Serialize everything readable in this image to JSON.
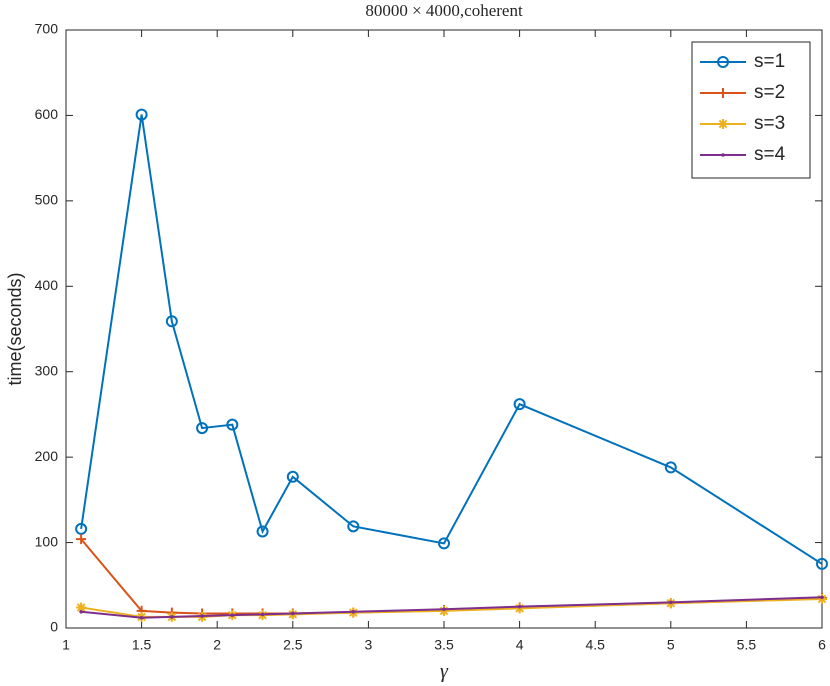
{
  "chart_data": {
    "type": "line",
    "title": "80000 × 4000,coherent",
    "x_label": "γ",
    "y_label": "time(seconds)",
    "x": [
      1.1,
      1.5,
      1.7,
      1.9,
      2.1,
      2.3,
      2.5,
      2.9,
      3.5,
      4,
      5,
      6
    ],
    "series": [
      {
        "name": "s=1",
        "color": "#0072bd",
        "marker": "circle",
        "values": [
          116,
          601,
          359,
          234,
          238,
          113,
          177,
          119,
          99,
          262,
          188,
          75
        ]
      },
      {
        "name": "s=2",
        "color": "#d95319",
        "marker": "plus",
        "values": [
          104,
          20,
          18,
          17,
          17,
          17,
          17,
          18,
          21,
          24,
          29,
          35
        ]
      },
      {
        "name": "s=3",
        "color": "#edb120",
        "marker": "asterisk",
        "values": [
          24,
          13,
          13,
          13,
          15,
          15,
          16,
          18,
          20,
          23,
          29,
          34
        ]
      },
      {
        "name": "s=4",
        "color": "#7e2f8e",
        "marker": "point",
        "values": [
          19,
          12,
          13,
          14,
          15,
          16,
          17,
          19,
          22,
          25,
          30,
          36
        ]
      }
    ],
    "xlim": [
      1,
      6
    ],
    "xticks": [
      1,
      1.5,
      2,
      2.5,
      3,
      3.5,
      4,
      4.5,
      5,
      5.5,
      6
    ],
    "ylim": [
      0,
      700
    ],
    "yticks": [
      0,
      100,
      200,
      300,
      400,
      500,
      600,
      700
    ],
    "grid": false,
    "legend_position": "northeast"
  }
}
